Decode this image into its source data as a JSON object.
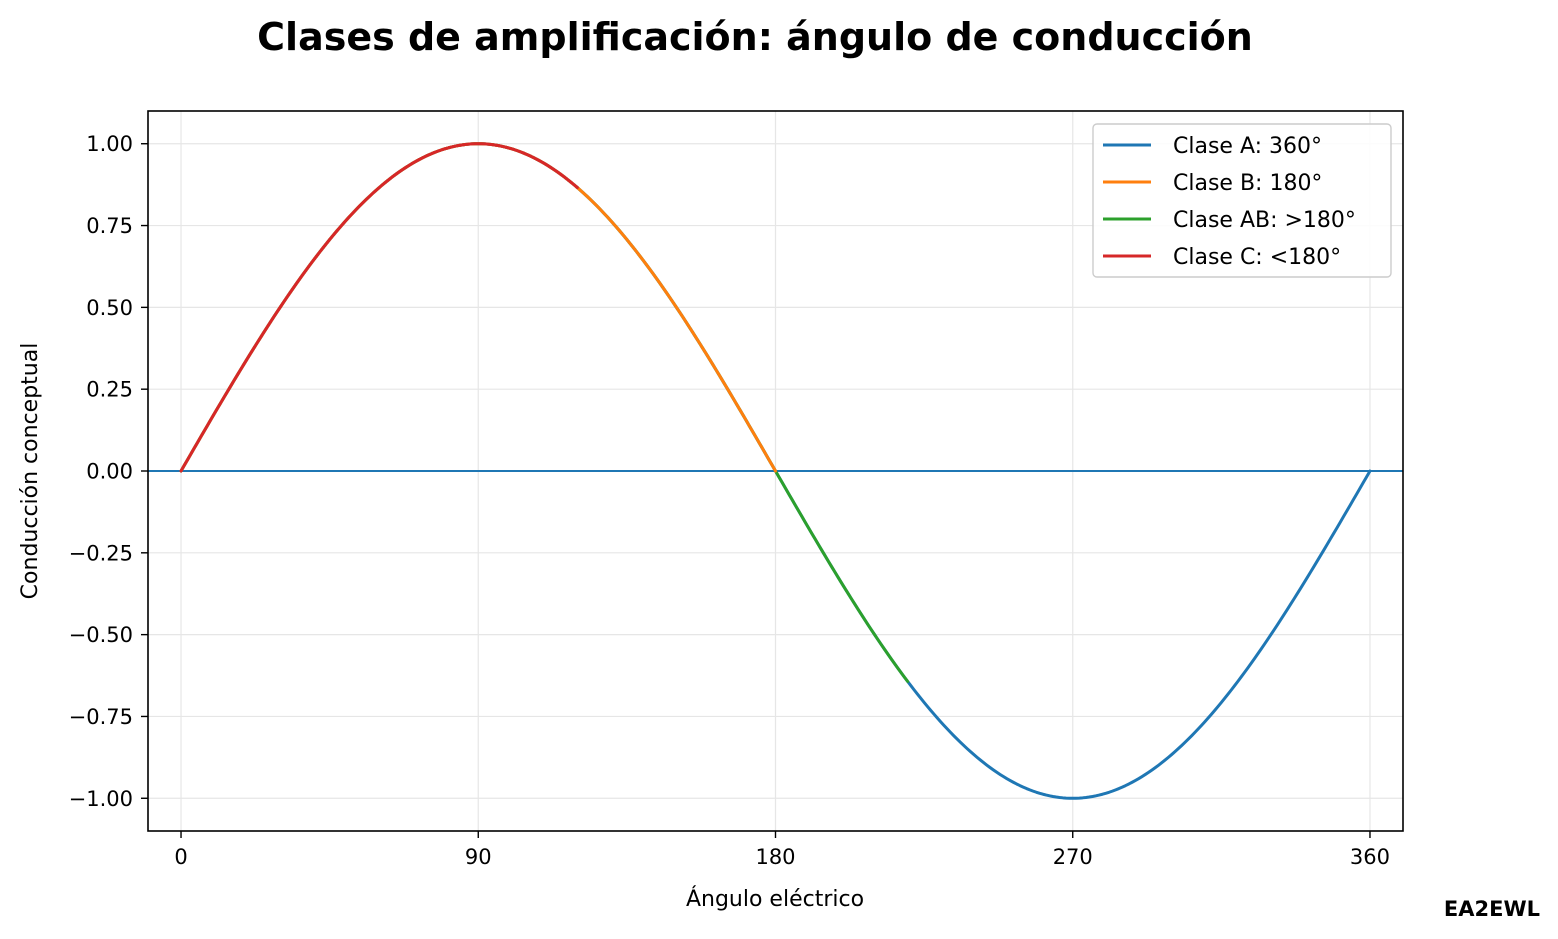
{
  "chart_data": {
    "type": "line",
    "title": "Clases de amplificación: ángulo de conducción",
    "xlabel": "Ángulo eléctrico",
    "ylabel": "Conducción conceptual",
    "xlim": [
      -10,
      370
    ],
    "ylim": [
      -1.1,
      1.1
    ],
    "x_ticks": [
      0,
      90,
      180,
      270,
      360
    ],
    "y_ticks": [
      1.0,
      0.75,
      0.5,
      0.25,
      0.0,
      -0.25,
      -0.5,
      -0.75,
      -1.0
    ],
    "y_tick_labels": [
      "1.00",
      "0.75",
      "0.50",
      "0.25",
      "0.00",
      "−0.25",
      "−0.50",
      "−0.75",
      "−1.00"
    ],
    "x_tick_labels": [
      "0",
      "90",
      "180",
      "270",
      "360"
    ],
    "grid": true,
    "legend_position": "top-right",
    "reference_line_y": 0,
    "series": [
      {
        "name": "Clase A: 360°",
        "function": "sin(x)",
        "x_range": [
          0,
          360
        ],
        "color": "#1f77b4"
      },
      {
        "name": "Clase B: 180°",
        "function": "sin(x)",
        "x_range": [
          0,
          180
        ],
        "color": "#ff7f0e"
      },
      {
        "name": "Clase AB: >180°",
        "function": "sin(x)",
        "x_range": [
          0,
          220
        ],
        "color": "#2ca02c"
      },
      {
        "name": "Clase C: <180°",
        "function": "sin(x)",
        "x_range": [
          0,
          120
        ],
        "color": "#d62728"
      }
    ]
  },
  "credit": "EA2EWL"
}
